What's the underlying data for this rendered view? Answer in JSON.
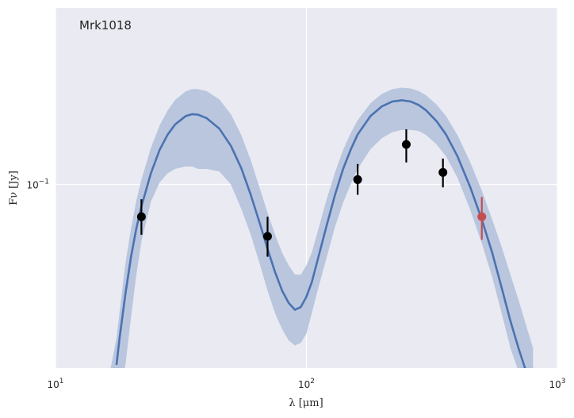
{
  "chart_data": {
    "type": "scatter",
    "title": "",
    "annotation": "Mrk1018",
    "xlabel": "λ [μm]",
    "ylabel": "Fν [Jy]",
    "x_scale": "log",
    "y_scale": "log",
    "xlim": [
      10,
      1000
    ],
    "ylim": [
      0.0155,
      0.6
    ],
    "x_ticks": [
      {
        "value": 10,
        "base": "10",
        "exp": "1"
      },
      {
        "value": 100,
        "base": "10",
        "exp": "2"
      },
      {
        "value": 1000,
        "base": "10",
        "exp": "3"
      }
    ],
    "y_ticks": [
      {
        "value": 0.1,
        "base": "10",
        "exp": "−1"
      }
    ],
    "grid": true,
    "colors": {
      "background": "#eaeaf2",
      "grid": "#ffffff",
      "model_line": "#4c72b0",
      "band": "#b9c6de",
      "points": "#000000",
      "highlight_point": "#c44e52"
    },
    "series": [
      {
        "kind": "model_line",
        "x": [
          17.5,
          18,
          19,
          20,
          21,
          22,
          24,
          26,
          28,
          30,
          33,
          35,
          37,
          40,
          45,
          50,
          55,
          60,
          65,
          70,
          75,
          80,
          85,
          90,
          95,
          100,
          105,
          110,
          120,
          130,
          140,
          150,
          160,
          180,
          200,
          220,
          240,
          260,
          280,
          300,
          330,
          360,
          400,
          450,
          500,
          550,
          600,
          650,
          700,
          750
        ],
        "y": [
          0.016,
          0.021,
          0.033,
          0.048,
          0.064,
          0.08,
          0.112,
          0.142,
          0.166,
          0.184,
          0.2,
          0.204,
          0.203,
          0.196,
          0.176,
          0.148,
          0.118,
          0.09,
          0.068,
          0.052,
          0.041,
          0.034,
          0.03,
          0.028,
          0.0288,
          0.032,
          0.037,
          0.045,
          0.065,
          0.09,
          0.117,
          0.142,
          0.166,
          0.2,
          0.221,
          0.232,
          0.235,
          0.232,
          0.224,
          0.212,
          0.19,
          0.166,
          0.133,
          0.097,
          0.07,
          0.05,
          0.035,
          0.025,
          0.019,
          0.015
        ]
      },
      {
        "kind": "band",
        "x": [
          16.5,
          17.5,
          19,
          20,
          21,
          22,
          24,
          26,
          28,
          30,
          33,
          35,
          37,
          40,
          45,
          50,
          55,
          60,
          65,
          70,
          75,
          80,
          85,
          90,
          95,
          100,
          105,
          110,
          120,
          130,
          140,
          150,
          160,
          180,
          200,
          220,
          240,
          260,
          280,
          300,
          330,
          360,
          400,
          450,
          500,
          550,
          600,
          650,
          700,
          750,
          800
        ],
        "upper": [
          0.015,
          0.021,
          0.045,
          0.064,
          0.085,
          0.105,
          0.145,
          0.182,
          0.212,
          0.236,
          0.257,
          0.263,
          0.263,
          0.258,
          0.237,
          0.204,
          0.165,
          0.128,
          0.097,
          0.075,
          0.06,
          0.05,
          0.044,
          0.04,
          0.04,
          0.044,
          0.05,
          0.06,
          0.085,
          0.113,
          0.142,
          0.168,
          0.192,
          0.228,
          0.251,
          0.263,
          0.267,
          0.265,
          0.258,
          0.247,
          0.225,
          0.2,
          0.165,
          0.125,
          0.094,
          0.07,
          0.053,
          0.04,
          0.031,
          0.024,
          0.019
        ],
        "lower": [
          null,
          null,
          0.016,
          0.026,
          0.04,
          0.056,
          0.084,
          0.102,
          0.112,
          0.117,
          0.12,
          0.12,
          0.117,
          0.117,
          0.114,
          0.1,
          0.078,
          0.06,
          0.045,
          0.034,
          0.027,
          0.023,
          0.0205,
          0.0195,
          0.02,
          0.022,
          0.027,
          0.033,
          0.047,
          0.065,
          0.083,
          0.1,
          0.117,
          0.143,
          0.16,
          0.17,
          0.174,
          0.174,
          0.172,
          0.165,
          0.15,
          0.133,
          0.107,
          0.077,
          0.055,
          0.039,
          0.027,
          0.019,
          0.015,
          null,
          null
        ]
      },
      {
        "kind": "points",
        "x": [
          22,
          70,
          160,
          250,
          350
        ],
        "y": [
          0.072,
          0.059,
          0.105,
          0.15,
          0.113
        ],
        "yerr_low": [
          0.06,
          0.048,
          0.09,
          0.125,
          0.097
        ],
        "yerr_high": [
          0.086,
          0.072,
          0.123,
          0.175,
          0.13
        ]
      },
      {
        "kind": "highlight_point",
        "x": [
          500
        ],
        "y": [
          0.072
        ],
        "yerr_low": [
          0.057
        ],
        "yerr_high": [
          0.088
        ]
      }
    ]
  }
}
